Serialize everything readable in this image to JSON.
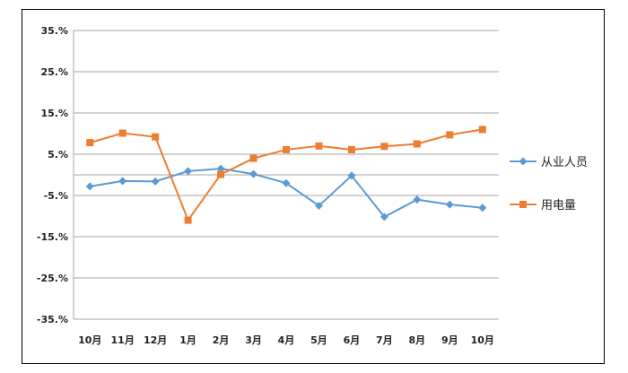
{
  "chart_data": {
    "type": "line",
    "categories": [
      "10月",
      "11月",
      "12月",
      "1月",
      "2月",
      "3月",
      "4月",
      "5月",
      "6月",
      "7月",
      "8月",
      "9月",
      "10月"
    ],
    "y_ticks": [
      "35.%",
      "25.%",
      "15.%",
      "5.%",
      "-5.%",
      "-15.%",
      "-25.%",
      "-35.%"
    ],
    "ylim": [
      -35,
      35
    ],
    "series": [
      {
        "name": "从业人员",
        "color": "#5b9bd5",
        "marker": "diamond",
        "values": [
          -2.8,
          -1.5,
          -1.6,
          0.9,
          1.5,
          0.2,
          -2.0,
          -7.5,
          -0.2,
          -10.2,
          -6.0,
          -7.2,
          -8.0
        ]
      },
      {
        "name": "用电量",
        "color": "#ed7d31",
        "marker": "square",
        "values": [
          7.8,
          10.1,
          9.2,
          -11.0,
          0.1,
          4.0,
          6.1,
          7.0,
          6.1,
          6.9,
          7.5,
          9.7,
          11.0
        ]
      }
    ],
    "grid": true,
    "legend": "right"
  }
}
